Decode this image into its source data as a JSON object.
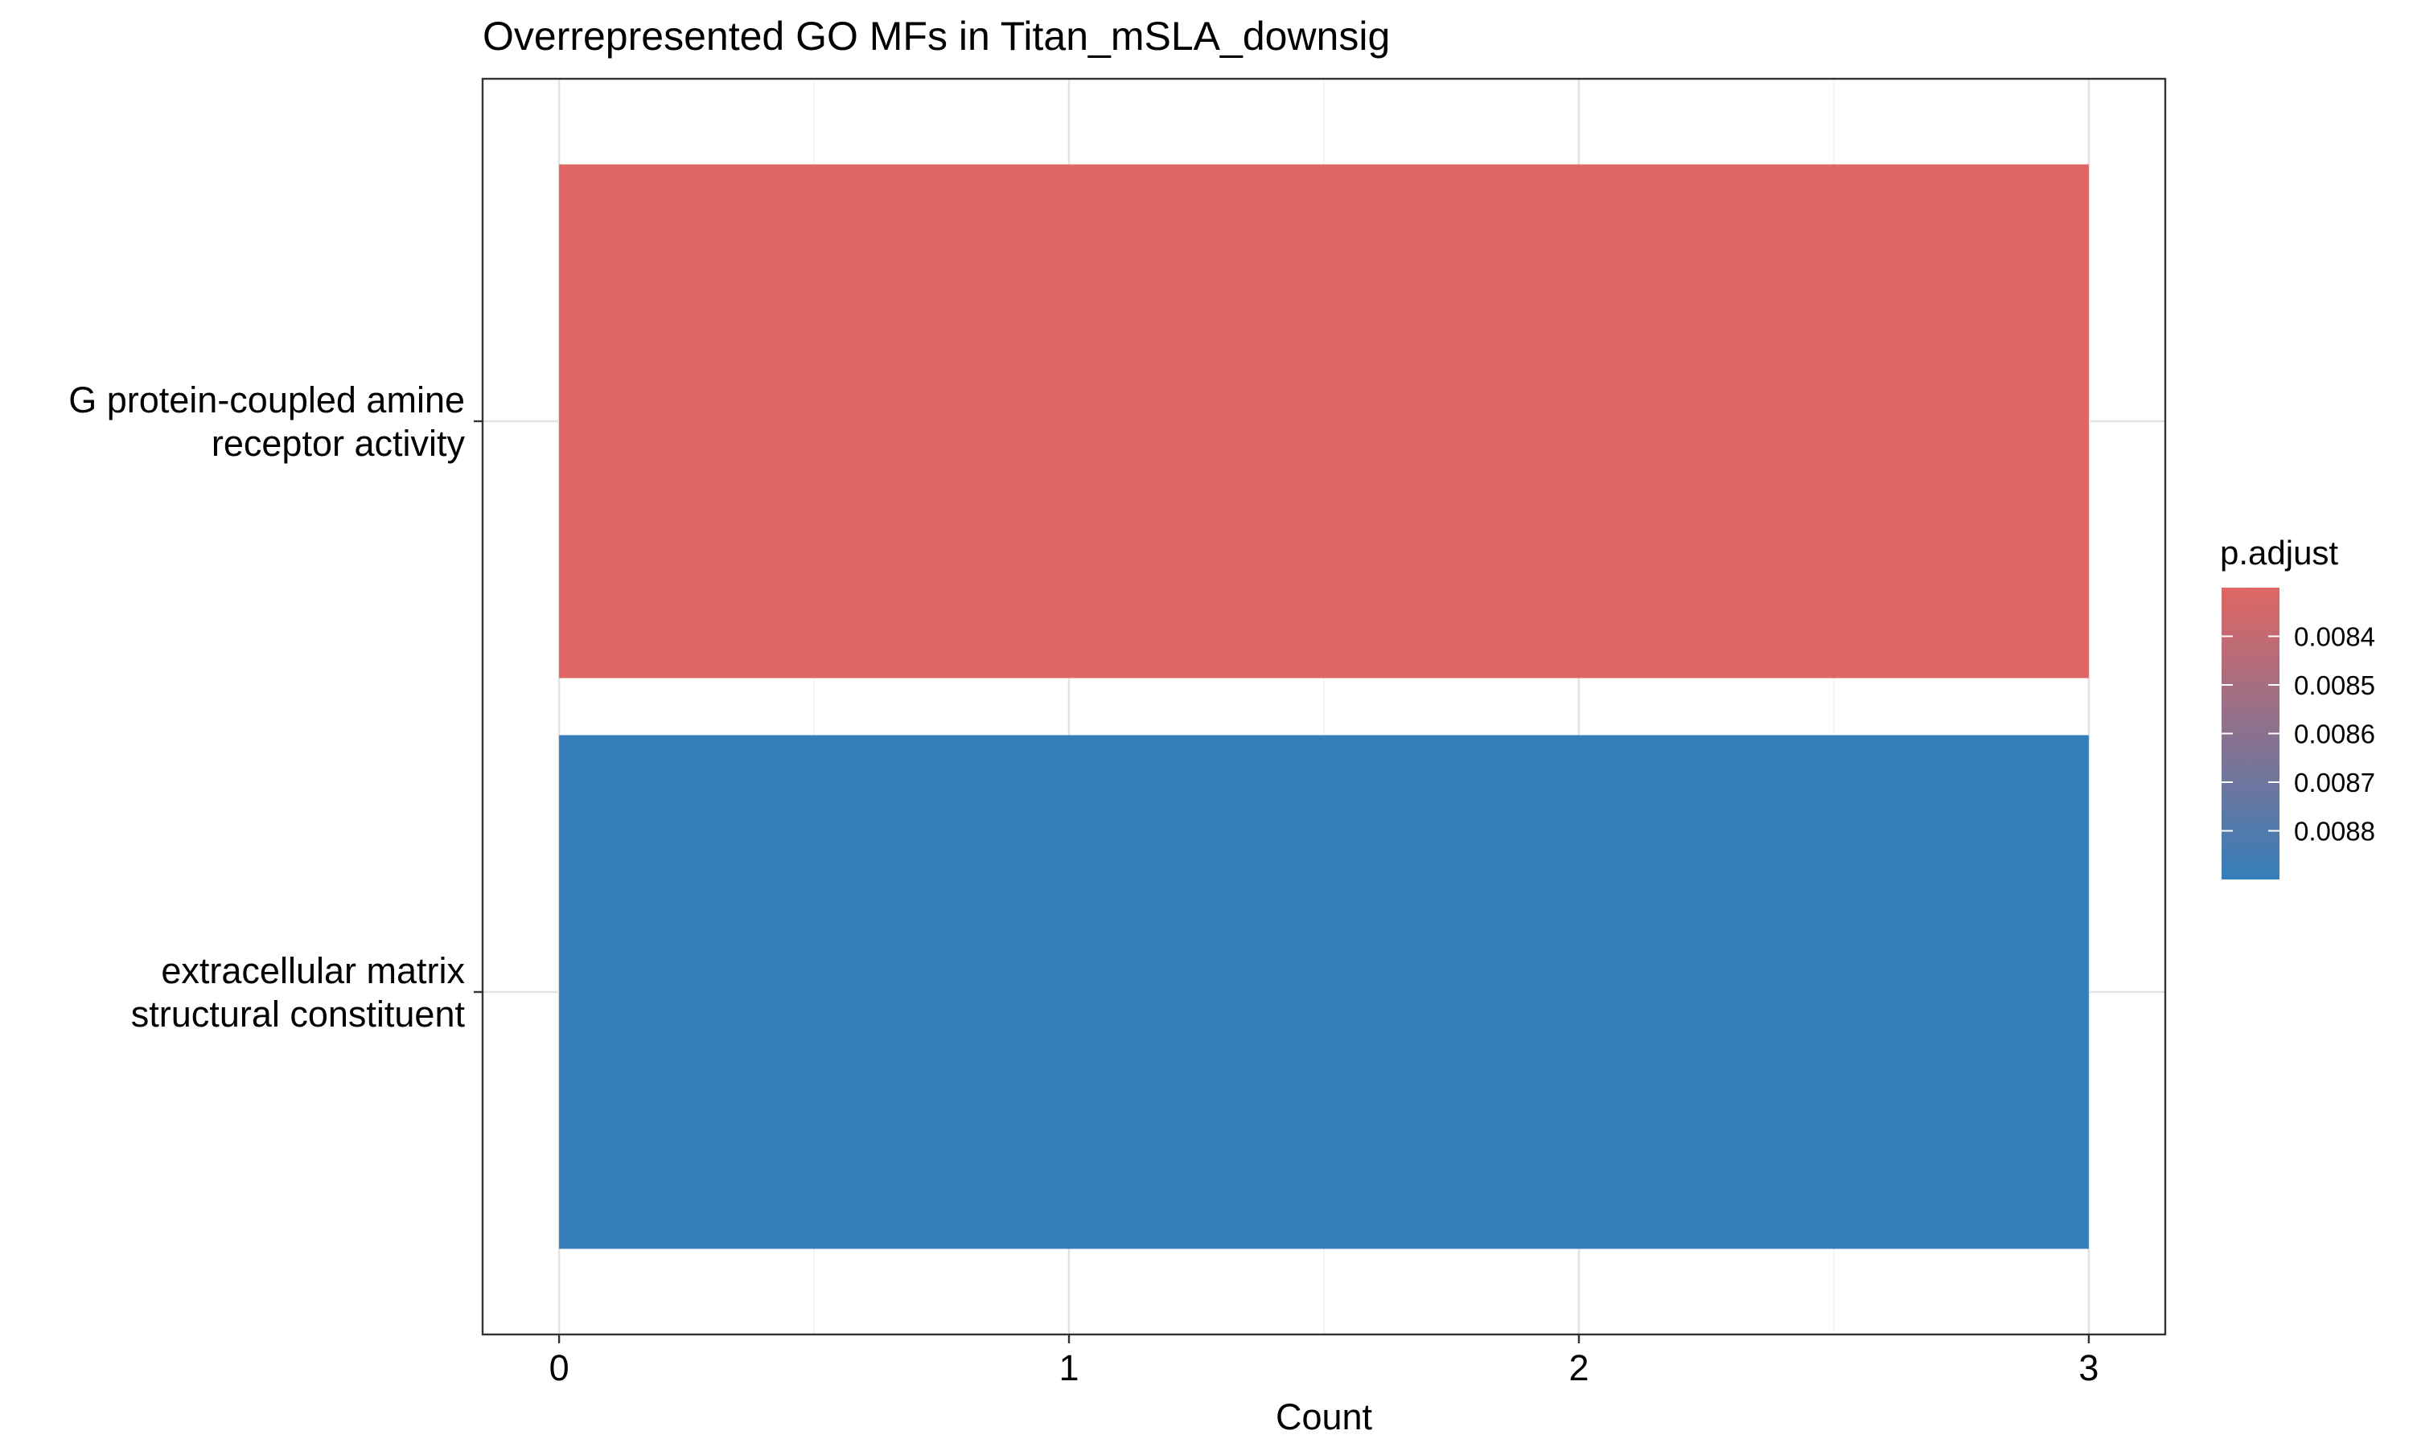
{
  "chart_data": {
    "type": "bar",
    "orientation": "horizontal",
    "title": "Overrepresented GO MFs in Titan_mSLA_downsig",
    "xlabel": "Count",
    "ylabel": "",
    "categories": [
      "G protein-coupled amine receptor activity",
      "extracellular matrix structural constituent"
    ],
    "category_lines": [
      [
        "G protein-coupled amine",
        "receptor activity"
      ],
      [
        "extracellular matrix",
        "structural constituent"
      ]
    ],
    "values": [
      3,
      3
    ],
    "p_adjust": [
      0.0083,
      0.0089
    ],
    "bar_colors": [
      "#E06663",
      "#357EBA"
    ],
    "xlim": [
      -0.15,
      3.15
    ],
    "xticks": [
      0,
      1,
      2,
      3
    ],
    "xtick_labels": [
      "0",
      "1",
      "2",
      "3"
    ],
    "grid": true,
    "legend": {
      "title": "p.adjust",
      "position": "right",
      "range": [
        0.0083,
        0.0089
      ],
      "ticks": [
        0.0084,
        0.0085,
        0.0086,
        0.0087,
        0.0088
      ],
      "tick_labels": [
        "0.0084",
        "0.0085",
        "0.0086",
        "0.0087",
        "0.0088"
      ],
      "low_color": "#E06663",
      "high_color": "#357EBA"
    }
  }
}
